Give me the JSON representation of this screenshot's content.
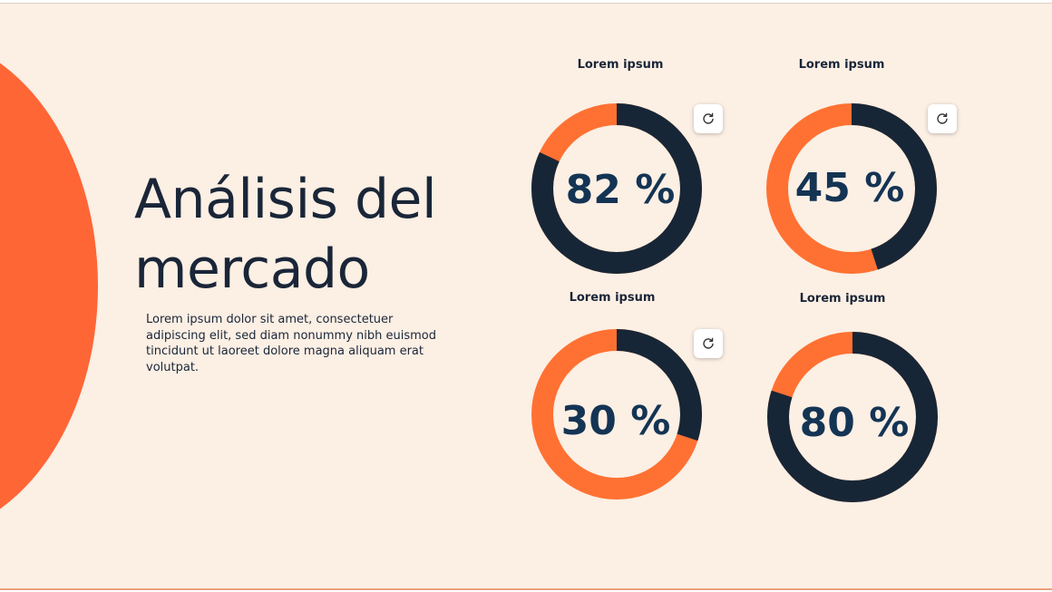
{
  "slide": {
    "title": "Análisis del mercado",
    "body": "Lorem ipsum dolor sit amet, consectetuer adipiscing elit, sed diam nonummy nibh euismod tincidunt ut laoreet dolore magna aliquam erat volutpat.",
    "colors": {
      "background": "#fcefe4",
      "accent_shape": "#ff6636",
      "ring_dark": "#172636",
      "ring_orange": "#ff7132",
      "value_text": "#143454"
    }
  },
  "charts": [
    {
      "label": "Lorem ipsum",
      "value_text": "82 %",
      "refresh_icon": "refresh-icon"
    },
    {
      "label": "Lorem ipsum",
      "value_text": "45 %",
      "refresh_icon": "refresh-icon"
    },
    {
      "label": "Lorem ipsum",
      "value_text": "30 %",
      "refresh_icon": "refresh-icon"
    },
    {
      "label": "Lorem ipsum",
      "value_text": "80 %"
    }
  ],
  "chart_data": [
    {
      "type": "pie",
      "title": "Lorem ipsum",
      "value": 82,
      "unit": "%",
      "series": [
        {
          "name": "",
          "values": [
            82,
            18
          ]
        }
      ]
    },
    {
      "type": "pie",
      "title": "Lorem ipsum",
      "value": 45,
      "unit": "%",
      "series": [
        {
          "name": "",
          "values": [
            45,
            55
          ]
        }
      ]
    },
    {
      "type": "pie",
      "title": "Lorem ipsum",
      "value": 30,
      "unit": "%",
      "series": [
        {
          "name": "",
          "values": [
            30,
            70
          ]
        }
      ]
    },
    {
      "type": "pie",
      "title": "Lorem ipsum",
      "value": 80,
      "unit": "%",
      "series": [
        {
          "name": "",
          "values": [
            80,
            20
          ]
        }
      ]
    }
  ]
}
